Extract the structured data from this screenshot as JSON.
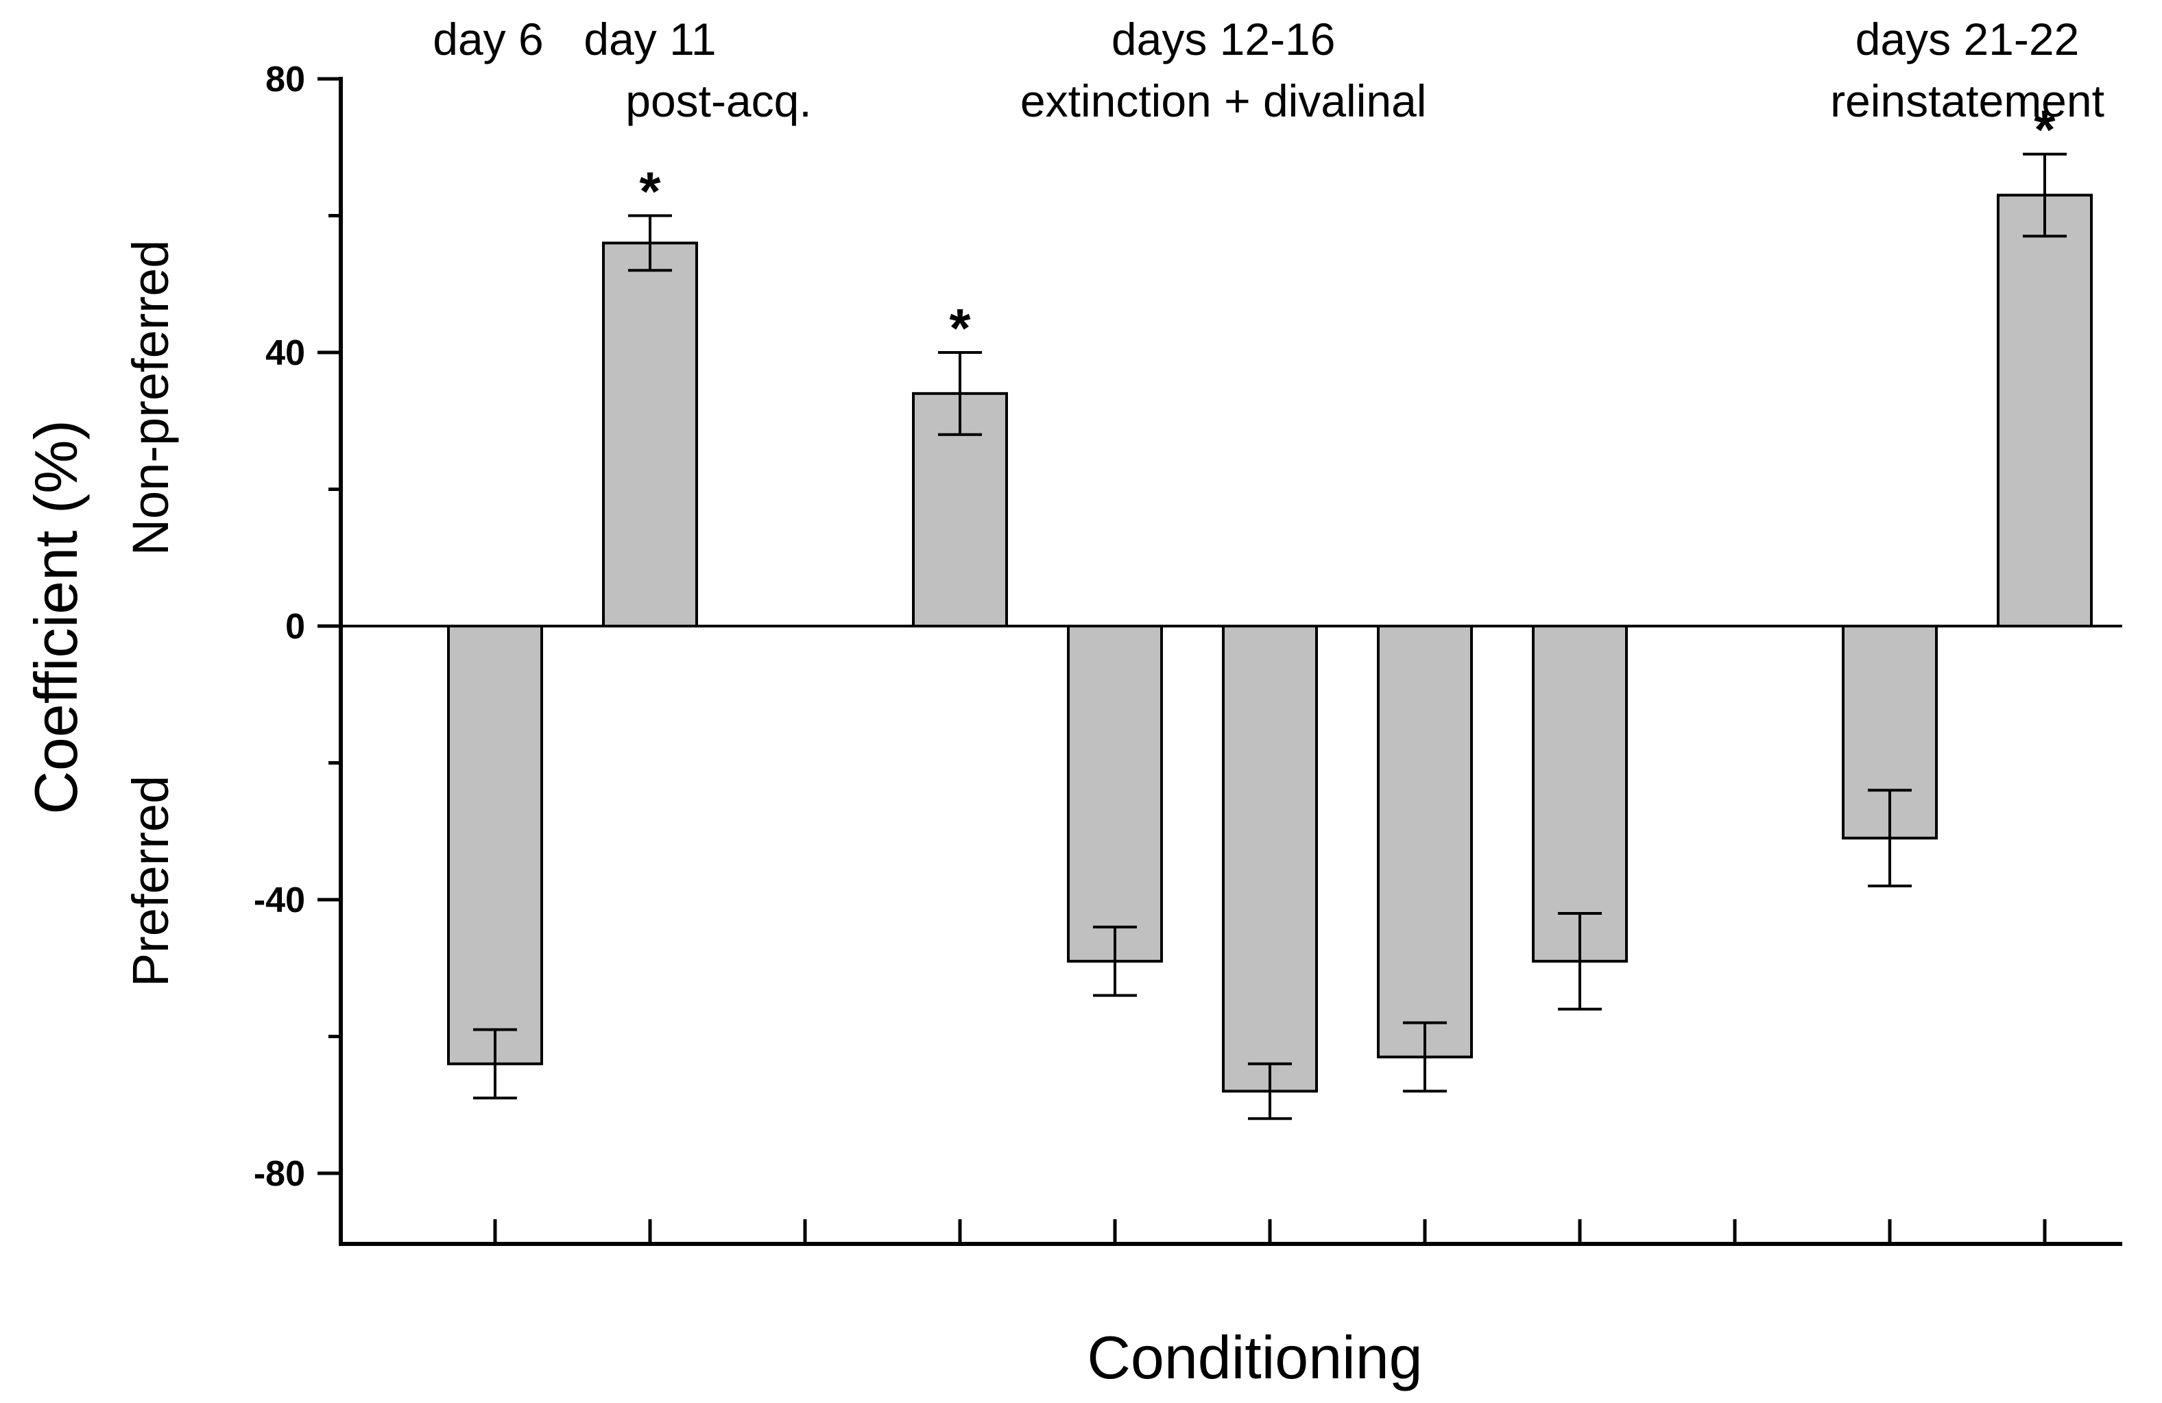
{
  "chart_data": {
    "type": "bar",
    "title": "",
    "xlabel": "Conditioning",
    "ylabel": "Coefficient (%)",
    "ylabel_upper": "Non-preferred",
    "ylabel_lower": "Preferred",
    "ylim": [
      -90,
      80
    ],
    "yticks": [
      80,
      40,
      0,
      -40,
      -80
    ],
    "grid": false,
    "bar_color": "#c0c0c0",
    "x_slots": 11,
    "values": [
      -64,
      56,
      null,
      34,
      -49,
      -68,
      -63,
      -49,
      null,
      -31,
      63
    ],
    "errors": [
      5,
      4,
      null,
      6,
      5,
      4,
      5,
      7,
      null,
      7,
      6
    ],
    "significant": [
      false,
      true,
      false,
      true,
      false,
      false,
      false,
      false,
      false,
      false,
      true
    ],
    "significance_marker": "*",
    "group_labels": [
      {
        "text": "day 6",
        "slot": 0
      },
      {
        "text": "day 11",
        "slot": 1
      },
      {
        "text": "post-acq.",
        "slot": 1
      },
      {
        "text": "days 12-16",
        "slot": 4.7
      },
      {
        "text": "extinction + divalinal",
        "slot": 4.7
      },
      {
        "text": "days 21-22",
        "slot": 9.5
      },
      {
        "text": "reinstatement",
        "slot": 9.5
      }
    ]
  }
}
